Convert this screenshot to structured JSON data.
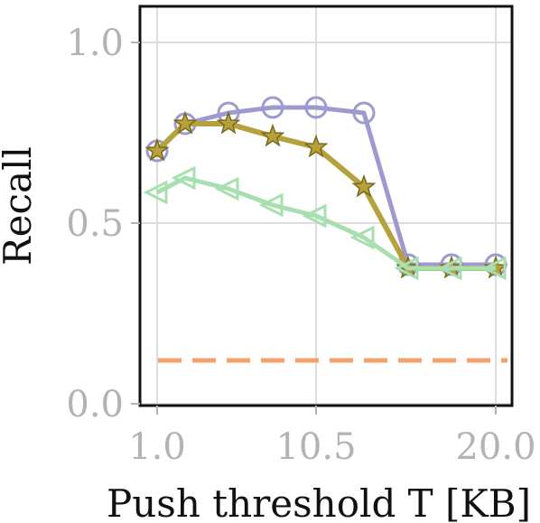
{
  "chart_data": {
    "type": "line",
    "xlabel": "Push threshold T [KB]",
    "ylabel": "Recall",
    "x_tick_labels": [
      "1.0",
      "10.5",
      "20.0"
    ],
    "y_tick_labels": [
      "0.0",
      "0.5",
      "1.0"
    ],
    "xlim": [
      0.0,
      21.0
    ],
    "ylim": [
      -0.005,
      1.1
    ],
    "grid": true,
    "x": [
      1.0,
      2.5,
      4.5,
      7.0,
      9.0,
      11.5,
      14.0,
      17.0,
      20.0
    ],
    "x_unequal_spacing_note": "",
    "series": [
      {
        "values": [
          0.7,
          0.775,
          0.805,
          0.82,
          0.82,
          0.805,
          0.385,
          0.385,
          0.385
        ],
        "color": "#9e9ad0",
        "marker": "circle"
      },
      {
        "values": [
          0.7,
          0.775,
          0.775,
          0.74,
          0.71,
          0.6,
          0.375,
          0.375,
          0.375
        ],
        "color": "#b5a13e",
        "marker": "star"
      },
      {
        "values": [
          0.585,
          0.625,
          0.595,
          0.55,
          0.52,
          0.46,
          0.375,
          0.375,
          0.375
        ],
        "color": "#a8dfb0",
        "marker": "triangle-left"
      },
      {
        "values": [
          0.12,
          0.12,
          0.12,
          0.12,
          0.12,
          0.12,
          0.12,
          0.12,
          0.12
        ],
        "color": "#f5a06a",
        "marker": "none",
        "dashed": true
      }
    ]
  }
}
